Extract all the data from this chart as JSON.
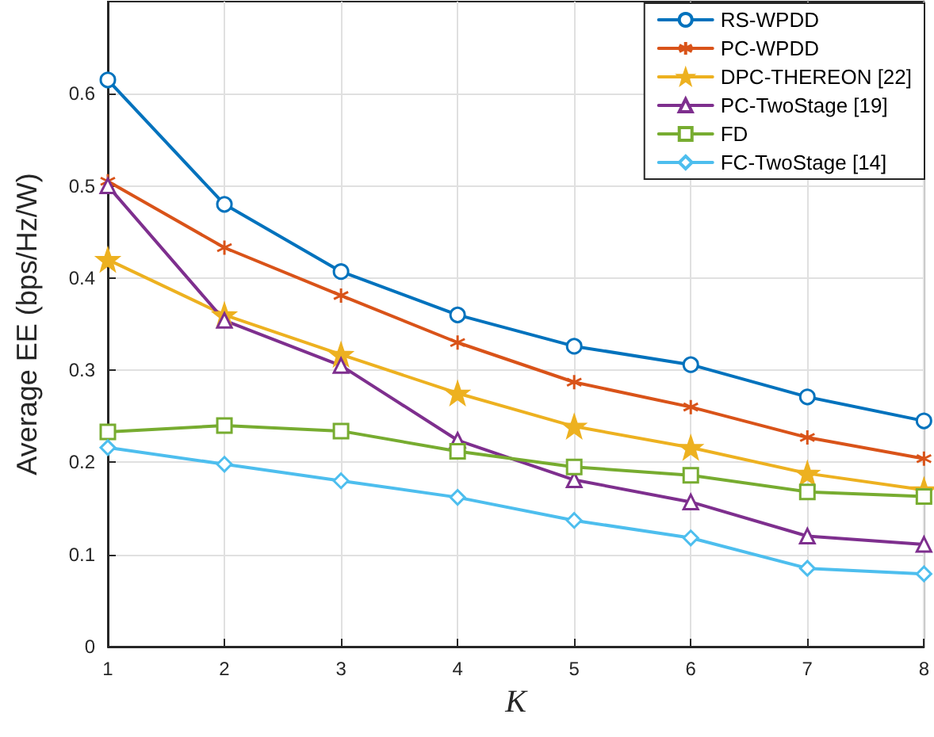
{
  "chart_data": {
    "type": "line",
    "xlabel": "K",
    "ylabel": "Average EE (bps/Hz/W)",
    "x": [
      1,
      2,
      3,
      4,
      5,
      6,
      7,
      8
    ],
    "xlim": [
      1,
      8
    ],
    "xticks": [
      1,
      2,
      3,
      4,
      5,
      6,
      7,
      8
    ],
    "ylim": [
      0,
      0.7
    ],
    "yticks": [
      0,
      0.1,
      0.2,
      0.3,
      0.4,
      0.5,
      0.6
    ],
    "grid": true,
    "legend": "top right",
    "line_style": "solid",
    "series": [
      {
        "name": "RS-WPDD",
        "color": "#0072bd",
        "marker": "circle",
        "values": [
          0.615,
          0.48,
          0.407,
          0.36,
          0.326,
          0.306,
          0.271,
          0.245
        ]
      },
      {
        "name": "PC-WPDD",
        "color": "#d95319",
        "marker": "cross",
        "values": [
          0.505,
          0.433,
          0.381,
          0.33,
          0.287,
          0.26,
          0.227,
          0.204
        ]
      },
      {
        "name": "DPC-THEREON [22]",
        "color": "#edb120",
        "marker": "star",
        "values": [
          0.42,
          0.36,
          0.317,
          0.275,
          0.239,
          0.216,
          0.188,
          0.17
        ]
      },
      {
        "name": "PC-TwoStage [19]",
        "color": "#7e2f8e",
        "marker": "triangle",
        "values": [
          0.5,
          0.354,
          0.305,
          0.224,
          0.181,
          0.157,
          0.12,
          0.111
        ]
      },
      {
        "name": "FD",
        "color": "#77ac30",
        "marker": "square",
        "values": [
          0.233,
          0.24,
          0.234,
          0.212,
          0.195,
          0.186,
          0.168,
          0.163
        ]
      },
      {
        "name": "FC-TwoStage [14]",
        "color": "#4dbeee",
        "marker": "diamond",
        "values": [
          0.216,
          0.198,
          0.18,
          0.162,
          0.137,
          0.118,
          0.085,
          0.079
        ]
      }
    ]
  }
}
